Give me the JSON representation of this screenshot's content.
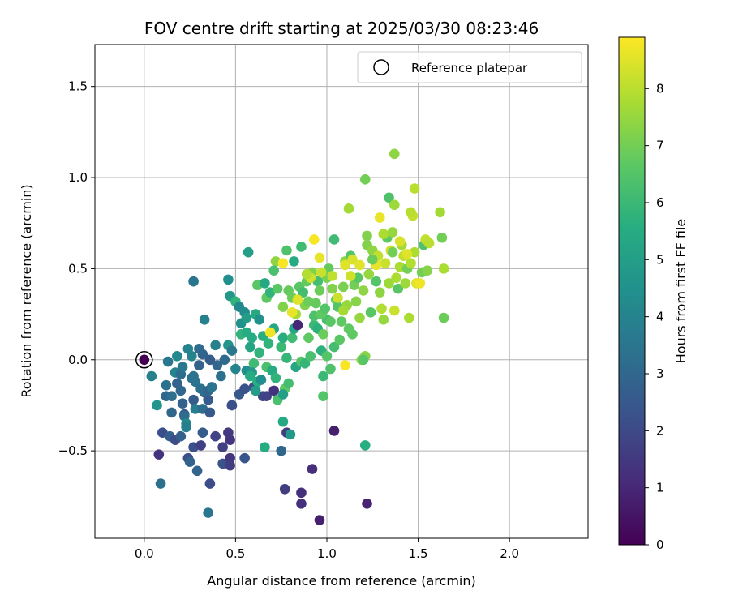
{
  "chart_data": {
    "type": "scatter",
    "title": "FOV centre drift starting at 2025/03/30 08:23:46",
    "xlabel": "Angular distance from reference (arcmin)",
    "ylabel": "Rotation from reference (arcmin)",
    "xlim": [
      -0.27,
      2.43
    ],
    "ylim": [
      -0.98,
      1.73
    ],
    "xticks": [
      0.0,
      0.5,
      1.0,
      1.5,
      2.0
    ],
    "xtick_labels": [
      "0.0",
      "0.5",
      "1.0",
      "1.5",
      "2.0"
    ],
    "yticks": [
      -0.5,
      0.0,
      0.5,
      1.0,
      1.5
    ],
    "ytick_labels": [
      "−0.5",
      "0.0",
      "0.5",
      "1.0",
      "1.5"
    ],
    "grid": true,
    "legend": {
      "placement": "top-right",
      "entries": [
        "Reference platepar"
      ]
    },
    "reference_point": {
      "x": 0.0,
      "y": 0.0,
      "label": "Reference platepar"
    },
    "colorbar": {
      "label": "Hours from first FF file",
      "range": [
        0,
        8.9
      ],
      "ticks": [
        0,
        1,
        2,
        3,
        4,
        5,
        6,
        7,
        8
      ],
      "tick_labels": [
        "0",
        "1",
        "2",
        "3",
        "4",
        "5",
        "6",
        "7",
        "8"
      ],
      "colormap": "viridis"
    },
    "points": [
      [
        0.08,
        -0.52,
        1.3
      ],
      [
        0.1,
        -0.4,
        2.2
      ],
      [
        0.09,
        -0.68,
        3.3
      ],
      [
        0.14,
        -0.42,
        2.7
      ],
      [
        0.15,
        -0.29,
        3.0
      ],
      [
        0.17,
        -0.44,
        2.1
      ],
      [
        0.2,
        -0.42,
        2.7
      ],
      [
        0.22,
        -0.3,
        2.6
      ],
      [
        0.24,
        -0.54,
        2.1
      ],
      [
        0.25,
        -0.56,
        2.8
      ],
      [
        0.27,
        -0.48,
        2.2
      ],
      [
        0.29,
        -0.61,
        2.9
      ],
      [
        0.31,
        -0.47,
        1.7
      ],
      [
        0.32,
        -0.4,
        2.6
      ],
      [
        0.36,
        -0.68,
        2.1
      ],
      [
        0.35,
        -0.84,
        3.5
      ],
      [
        0.39,
        -0.42,
        1.8
      ],
      [
        0.43,
        -0.48,
        1.7
      ],
      [
        0.43,
        -0.57,
        2.3
      ],
      [
        0.47,
        -0.54,
        1.4
      ],
      [
        0.47,
        -0.58,
        1.6
      ],
      [
        0.47,
        -0.44,
        1.4
      ],
      [
        0.46,
        -0.4,
        1.5
      ],
      [
        0.55,
        -0.54,
        2.4
      ],
      [
        0.48,
        -0.25,
        2.2
      ],
      [
        0.52,
        -0.19,
        2.5
      ],
      [
        0.55,
        -0.16,
        2.3
      ],
      [
        0.6,
        -0.15,
        2.2
      ],
      [
        0.65,
        -0.2,
        1.9
      ],
      [
        0.67,
        -0.2,
        1.8
      ],
      [
        0.71,
        -0.17,
        1.3
      ],
      [
        0.04,
        -0.09,
        3.9
      ],
      [
        0.07,
        -0.25,
        4.6
      ],
      [
        0.12,
        -0.14,
        3.3
      ],
      [
        0.13,
        -0.01,
        3.5
      ],
      [
        0.12,
        -0.2,
        3.0
      ],
      [
        0.15,
        -0.2,
        3.3
      ],
      [
        0.17,
        -0.07,
        4.0
      ],
      [
        0.18,
        -0.13,
        2.9
      ],
      [
        0.18,
        0.02,
        4.2
      ],
      [
        0.2,
        -0.17,
        3.0
      ],
      [
        0.2,
        -0.08,
        3.2
      ],
      [
        0.21,
        -0.24,
        2.8
      ],
      [
        0.22,
        -0.31,
        3.2
      ],
      [
        0.21,
        -0.04,
        3.6
      ],
      [
        0.23,
        -0.35,
        4.2
      ],
      [
        0.23,
        -0.37,
        3.8
      ],
      [
        0.24,
        0.06,
        4.0
      ],
      [
        0.26,
        -0.1,
        3.5
      ],
      [
        0.26,
        0.02,
        4.0
      ],
      [
        0.27,
        -0.22,
        2.6
      ],
      [
        0.27,
        -0.09,
        3.4
      ],
      [
        0.28,
        -0.27,
        3.8
      ],
      [
        0.28,
        -0.12,
        3.4
      ],
      [
        0.3,
        -0.03,
        2.8
      ],
      [
        0.3,
        0.06,
        3.2
      ],
      [
        0.31,
        -0.16,
        3.3
      ],
      [
        0.32,
        -0.27,
        3.2
      ],
      [
        0.32,
        0.03,
        2.9
      ],
      [
        0.33,
        -0.18,
        3.2
      ],
      [
        0.35,
        -0.22,
        2.6
      ],
      [
        0.35,
        -0.17,
        3.0
      ],
      [
        0.36,
        -0.29,
        2.5
      ],
      [
        0.37,
        -0.15,
        3.4
      ],
      [
        0.36,
        0.0,
        2.6
      ],
      [
        0.39,
        0.08,
        3.9
      ],
      [
        0.4,
        -0.03,
        3.0
      ],
      [
        0.42,
        -0.09,
        3.3
      ],
      [
        0.44,
        0.0,
        3.1
      ],
      [
        0.46,
        0.08,
        4.6
      ],
      [
        0.48,
        0.05,
        3.6
      ],
      [
        0.48,
        -0.25,
        2.2
      ],
      [
        0.5,
        -0.05,
        4.0
      ],
      [
        0.27,
        0.43,
        3.5
      ],
      [
        0.33,
        0.22,
        3.9
      ],
      [
        0.46,
        0.44,
        4.4
      ],
      [
        0.47,
        0.35,
        4.7
      ],
      [
        0.5,
        0.32,
        5.8
      ],
      [
        0.52,
        0.29,
        4.2
      ],
      [
        0.53,
        0.2,
        4.5
      ],
      [
        0.55,
        0.26,
        4.3
      ],
      [
        0.56,
        0.23,
        4.9
      ],
      [
        0.57,
        0.59,
        5.0
      ],
      [
        0.61,
        0.25,
        5.4
      ],
      [
        0.62,
        0.41,
        6.6
      ],
      [
        0.63,
        0.22,
        4.5
      ],
      [
        0.66,
        0.42,
        5.4
      ],
      [
        0.67,
        0.34,
        6.7
      ],
      [
        0.69,
        0.37,
        5.8
      ],
      [
        0.53,
        0.14,
        5.8
      ],
      [
        0.56,
        0.15,
        5.5
      ],
      [
        0.58,
        0.07,
        5.2
      ],
      [
        0.59,
        0.12,
        5.5
      ],
      [
        0.6,
        -0.02,
        6.1
      ],
      [
        0.62,
        -0.12,
        5.6
      ],
      [
        0.63,
        0.04,
        5.8
      ],
      [
        0.65,
        0.13,
        5.6
      ],
      [
        0.67,
        -0.04,
        6.3
      ],
      [
        0.68,
        0.09,
        5.8
      ],
      [
        0.7,
        -0.06,
        5.5
      ],
      [
        0.71,
        0.17,
        5.3
      ],
      [
        0.72,
        -0.1,
        5.8
      ],
      [
        0.73,
        -0.22,
        6.3
      ],
      [
        0.75,
        0.07,
        6.0
      ],
      [
        0.76,
        0.12,
        5.6
      ],
      [
        0.77,
        -0.16,
        6.7
      ],
      [
        0.78,
        0.01,
        5.9
      ],
      [
        0.79,
        -0.13,
        6.2
      ],
      [
        0.81,
        0.12,
        6.1
      ],
      [
        0.82,
        0.17,
        5.3
      ],
      [
        0.84,
        0.19,
        1.0
      ],
      [
        0.83,
        -0.04,
        5.3
      ],
      [
        0.86,
        -0.01,
        6.5
      ],
      [
        0.88,
        -0.02,
        5.9
      ],
      [
        0.9,
        0.12,
        6.7
      ],
      [
        0.91,
        0.02,
        6.3
      ],
      [
        0.93,
        0.19,
        6.0
      ],
      [
        0.95,
        0.17,
        5.7
      ],
      [
        0.97,
        0.05,
        5.7
      ],
      [
        0.98,
        -0.09,
        6.0
      ],
      [
        1.0,
        0.02,
        6.5
      ],
      [
        1.02,
        -0.05,
        6.4
      ],
      [
        1.04,
        0.07,
        6.2
      ],
      [
        1.0,
        0.22,
        6.2
      ],
      [
        0.56,
        -0.06,
        4.4
      ],
      [
        0.59,
        -0.07,
        4.8
      ],
      [
        0.61,
        -0.17,
        4.9
      ],
      [
        0.58,
        -0.09,
        5.5
      ],
      [
        0.64,
        -0.11,
        4.4
      ],
      [
        0.66,
        -0.48,
        5.5
      ],
      [
        0.76,
        -0.34,
        5.4
      ],
      [
        0.78,
        -0.4,
        1.6
      ],
      [
        0.8,
        -0.41,
        4.8
      ],
      [
        0.75,
        -0.5,
        3.0
      ],
      [
        0.77,
        -0.71,
        1.6
      ],
      [
        0.86,
        -0.73,
        1.2
      ],
      [
        0.86,
        -0.79,
        1.2
      ],
      [
        0.92,
        -0.6,
        1.2
      ],
      [
        0.96,
        -0.88,
        0.8
      ],
      [
        1.04,
        -0.39,
        0.8
      ],
      [
        1.22,
        -0.79,
        0.9
      ],
      [
        1.21,
        -0.47,
        5.6
      ],
      [
        0.98,
        -0.2,
        6.5
      ],
      [
        0.72,
        0.54,
        7.4
      ],
      [
        0.71,
        0.49,
        6.3
      ],
      [
        0.73,
        0.39,
        6.6
      ],
      [
        0.76,
        0.29,
        7.2
      ],
      [
        0.78,
        0.6,
        6.4
      ],
      [
        0.79,
        0.38,
        6.8
      ],
      [
        0.81,
        0.34,
        6.9
      ],
      [
        0.82,
        0.54,
        5.5
      ],
      [
        0.83,
        0.25,
        7.7
      ],
      [
        0.85,
        0.4,
        6.6
      ],
      [
        0.86,
        0.62,
        6.1
      ],
      [
        0.87,
        0.37,
        6.2
      ],
      [
        0.88,
        0.3,
        7.2
      ],
      [
        0.89,
        0.43,
        6.8
      ],
      [
        0.9,
        0.32,
        6.9
      ],
      [
        0.92,
        0.48,
        7.2
      ],
      [
        0.93,
        0.24,
        6.4
      ],
      [
        0.94,
        0.31,
        6.8
      ],
      [
        0.95,
        0.43,
        6.2
      ],
      [
        0.96,
        0.38,
        6.9
      ],
      [
        0.97,
        0.25,
        6.7
      ],
      [
        0.98,
        0.14,
        6.9
      ],
      [
        0.99,
        0.28,
        6.5
      ],
      [
        1.0,
        0.45,
        7.1
      ],
      [
        1.01,
        0.5,
        6.8
      ],
      [
        1.02,
        0.21,
        6.6
      ],
      [
        1.03,
        0.39,
        7.2
      ],
      [
        1.04,
        0.66,
        6.1
      ],
      [
        1.05,
        0.33,
        6.8
      ],
      [
        1.06,
        0.29,
        6.5
      ],
      [
        1.07,
        0.11,
        6.6
      ],
      [
        1.08,
        0.21,
        6.7
      ],
      [
        1.09,
        0.4,
        7.1
      ],
      [
        1.1,
        0.54,
        7.4
      ],
      [
        1.11,
        0.3,
        7.5
      ],
      [
        1.12,
        0.17,
        6.7
      ],
      [
        1.13,
        0.57,
        6.5
      ],
      [
        1.14,
        0.14,
        6.7
      ],
      [
        1.15,
        0.41,
        7.0
      ],
      [
        1.16,
        0.32,
        7.3
      ],
      [
        1.17,
        0.45,
        6.6
      ],
      [
        1.18,
        0.23,
        7.5
      ],
      [
        1.19,
        0.0,
        7.3
      ],
      [
        1.2,
        0.38,
        7.4
      ],
      [
        1.21,
        0.02,
        7.3
      ],
      [
        1.22,
        0.63,
        7.2
      ],
      [
        1.23,
        0.47,
        7.5
      ],
      [
        1.24,
        0.26,
        6.6
      ],
      [
        1.25,
        0.6,
        7.4
      ],
      [
        1.27,
        0.43,
        6.5
      ],
      [
        1.28,
        0.57,
        8.1
      ],
      [
        1.29,
        0.37,
        7.4
      ],
      [
        1.3,
        0.28,
        7.9
      ],
      [
        1.31,
        0.22,
        7.5
      ],
      [
        1.32,
        0.53,
        8.2
      ],
      [
        1.33,
        0.67,
        6.7
      ],
      [
        1.34,
        0.42,
        7.6
      ],
      [
        1.35,
        0.6,
        8.3
      ],
      [
        1.36,
        0.59,
        7.0
      ],
      [
        1.37,
        0.27,
        8.2
      ],
      [
        1.38,
        0.45,
        7.8
      ],
      [
        1.39,
        0.39,
        6.6
      ],
      [
        1.4,
        0.51,
        7.8
      ],
      [
        1.41,
        0.63,
        7.7
      ],
      [
        1.42,
        0.57,
        8.1
      ],
      [
        1.43,
        0.42,
        7.6
      ],
      [
        1.44,
        0.5,
        7.0
      ],
      [
        1.45,
        0.23,
        7.8
      ],
      [
        1.46,
        0.53,
        7.9
      ],
      [
        1.47,
        0.79,
        8.1
      ],
      [
        1.48,
        0.59,
        7.8
      ],
      [
        1.49,
        0.42,
        8.5
      ],
      [
        1.52,
        0.48,
        7.0
      ],
      [
        1.53,
        0.63,
        6.4
      ],
      [
        1.54,
        0.66,
        8.1
      ],
      [
        1.55,
        0.49,
        7.3
      ],
      [
        1.56,
        0.64,
        8.0
      ],
      [
        1.62,
        0.81,
        7.7
      ],
      [
        1.63,
        0.67,
        7.0
      ],
      [
        1.64,
        0.5,
        7.8
      ],
      [
        1.64,
        0.23,
        6.9
      ],
      [
        1.21,
        0.99,
        7.0
      ],
      [
        1.37,
        1.13,
        7.4
      ],
      [
        1.48,
        0.94,
        8.0
      ],
      [
        1.34,
        0.89,
        6.4
      ],
      [
        1.37,
        0.85,
        7.6
      ],
      [
        1.46,
        0.81,
        8.0
      ],
      [
        1.29,
        0.78,
        8.6
      ],
      [
        1.12,
        0.83,
        7.7
      ],
      [
        1.22,
        0.68,
        7.2
      ],
      [
        1.31,
        0.69,
        7.8
      ],
      [
        1.36,
        0.7,
        7.5
      ],
      [
        1.09,
        0.27,
        7.7
      ],
      [
        1.1,
        0.52,
        8.5
      ],
      [
        1.13,
        0.46,
        8.3
      ],
      [
        1.14,
        0.55,
        8.4
      ],
      [
        1.06,
        0.34,
        8.2
      ],
      [
        1.03,
        0.46,
        8.1
      ],
      [
        0.97,
        0.48,
        8.2
      ],
      [
        0.96,
        0.56,
        8.6
      ],
      [
        0.91,
        0.45,
        8.3
      ],
      [
        0.89,
        0.47,
        7.9
      ],
      [
        0.84,
        0.33,
        8.5
      ],
      [
        0.81,
        0.26,
        8.6
      ],
      [
        0.76,
        0.53,
        8.8
      ],
      [
        0.69,
        0.15,
        8.7
      ],
      [
        0.93,
        0.66,
        8.8
      ],
      [
        1.1,
        -0.03,
        8.8
      ],
      [
        1.18,
        0.52,
        8.5
      ],
      [
        1.27,
        0.52,
        8.6
      ],
      [
        1.4,
        0.65,
        8.4
      ],
      [
        1.44,
        0.58,
        8.5
      ],
      [
        1.51,
        0.42,
        8.7
      ],
      [
        1.2,
        0.0,
        6.6
      ],
      [
        1.25,
        0.55,
        6.9
      ],
      [
        0.76,
        -0.19,
        5.0
      ]
    ]
  }
}
